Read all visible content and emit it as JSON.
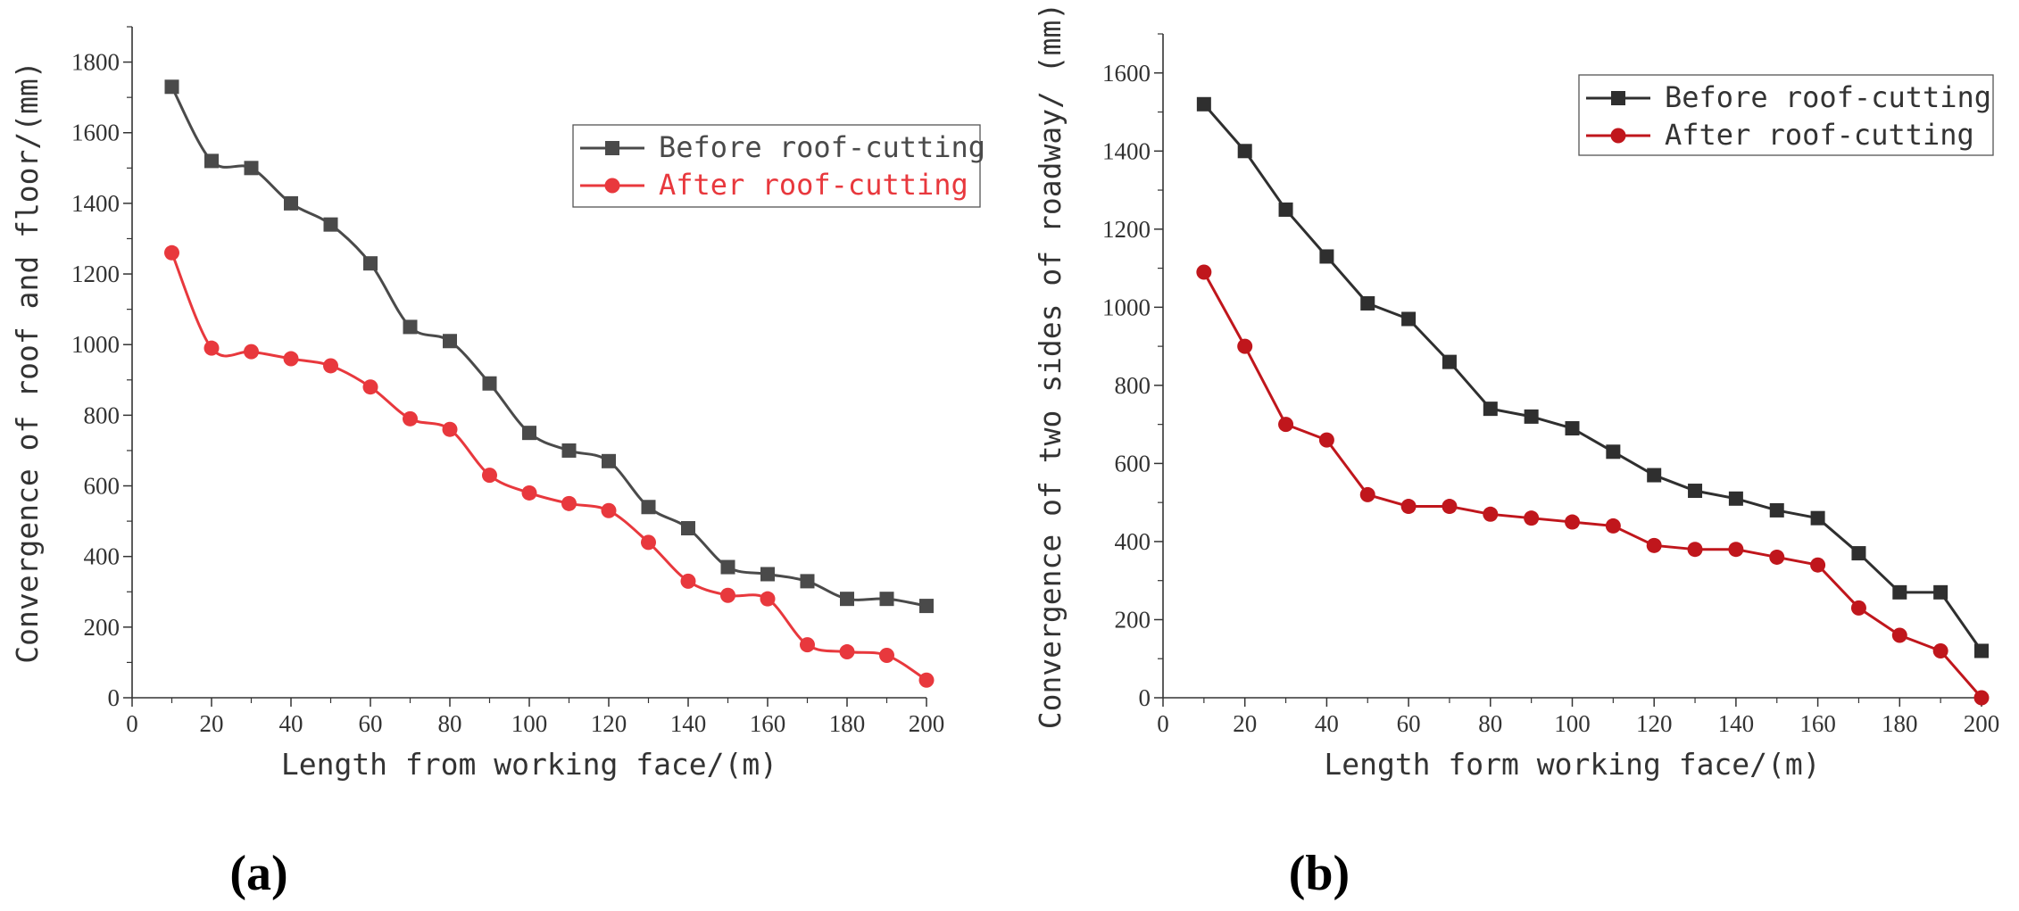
{
  "chart_data": [
    {
      "type": "line",
      "panel_label": "(a)",
      "title": "",
      "xlabel": "Length from working face/(m)",
      "ylabel": "Convergence of roof and floor/(mm)",
      "xlim": [
        0,
        200
      ],
      "ylim": [
        0,
        1900
      ],
      "xticks": [
        0,
        20,
        40,
        60,
        80,
        100,
        120,
        140,
        160,
        180,
        200
      ],
      "yticks": [
        0,
        200,
        400,
        600,
        800,
        1000,
        1200,
        1400,
        1600,
        1800
      ],
      "grid": false,
      "smooth": true,
      "legend_position": "top-right",
      "legend_colored_text": true,
      "series": [
        {
          "name": "Before roof-cutting",
          "color": "#4a4a4a",
          "marker": "square",
          "x": [
            10,
            20,
            30,
            40,
            50,
            60,
            70,
            80,
            90,
            100,
            110,
            120,
            130,
            140,
            150,
            160,
            170,
            180,
            190,
            200
          ],
          "values": [
            1730,
            1520,
            1500,
            1400,
            1340,
            1230,
            1050,
            1010,
            890,
            750,
            700,
            670,
            540,
            480,
            370,
            350,
            330,
            280,
            280,
            260
          ]
        },
        {
          "name": "After roof-cutting",
          "color": "#e8383d",
          "marker": "circle",
          "x": [
            10,
            20,
            30,
            40,
            50,
            60,
            70,
            80,
            90,
            100,
            110,
            120,
            130,
            140,
            150,
            160,
            170,
            180,
            190,
            200
          ],
          "values": [
            1260,
            990,
            980,
            960,
            940,
            880,
            790,
            760,
            630,
            580,
            550,
            530,
            440,
            330,
            290,
            280,
            150,
            130,
            120,
            50
          ]
        }
      ]
    },
    {
      "type": "line",
      "panel_label": "(b)",
      "title": "",
      "xlabel": "Length form working face/(m)",
      "ylabel": "Convergence of two sides of roadway/ (mm)",
      "xlim": [
        0,
        200
      ],
      "ylim": [
        0,
        1700
      ],
      "xticks": [
        0,
        20,
        40,
        60,
        80,
        100,
        120,
        140,
        160,
        180,
        200
      ],
      "yticks": [
        0,
        200,
        400,
        600,
        800,
        1000,
        1200,
        1400,
        1600
      ],
      "grid": false,
      "smooth": false,
      "legend_position": "top-right",
      "legend_colored_text": false,
      "series": [
        {
          "name": "Before roof-cutting",
          "color": "#2f2f2f",
          "marker": "square",
          "x": [
            10,
            20,
            30,
            40,
            50,
            60,
            70,
            80,
            90,
            100,
            110,
            120,
            130,
            140,
            150,
            160,
            170,
            180,
            190,
            200
          ],
          "values": [
            1520,
            1400,
            1250,
            1130,
            1010,
            970,
            860,
            740,
            720,
            690,
            630,
            570,
            530,
            510,
            480,
            460,
            370,
            270,
            270,
            120
          ]
        },
        {
          "name": "After roof-cutting",
          "color": "#c0161c",
          "marker": "circle",
          "x": [
            10,
            20,
            30,
            40,
            50,
            60,
            70,
            80,
            90,
            100,
            110,
            120,
            130,
            140,
            150,
            160,
            170,
            180,
            190,
            200
          ],
          "values": [
            1090,
            900,
            700,
            660,
            520,
            490,
            490,
            470,
            460,
            450,
            440,
            390,
            380,
            380,
            360,
            340,
            230,
            160,
            120,
            0
          ]
        }
      ]
    }
  ]
}
